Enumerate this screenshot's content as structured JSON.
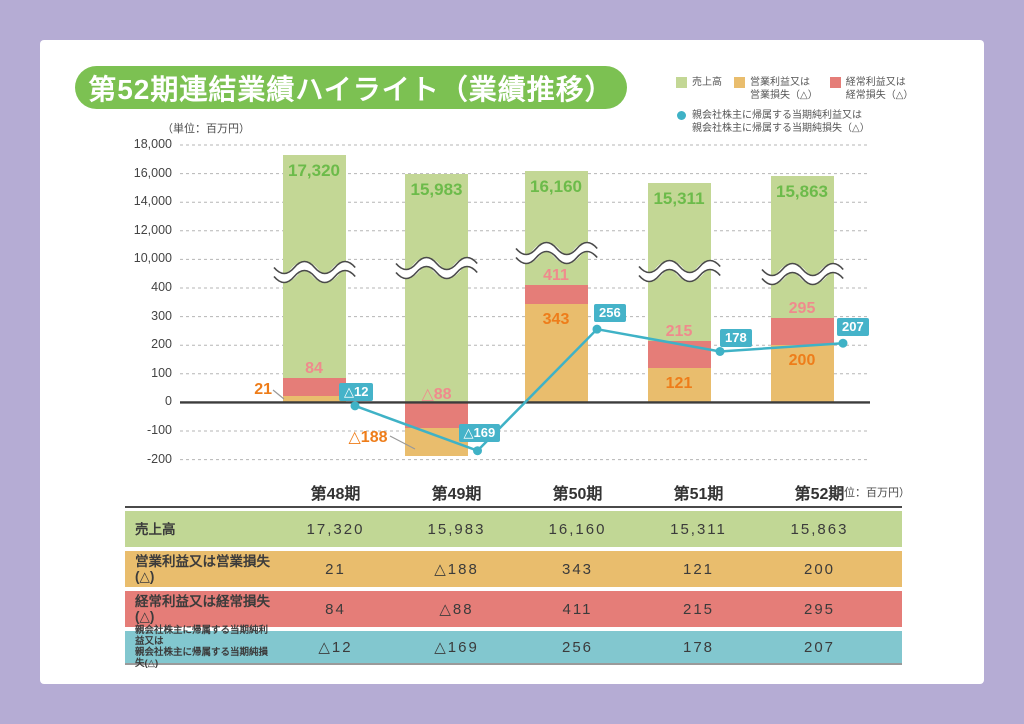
{
  "title": "第52期連結業績ハイライト（業績推移）",
  "chart_unit_label": "（単位：百万円）",
  "legend": {
    "sales": "売上高",
    "operating_1": "営業利益又は",
    "operating_2": "営業損失（△）",
    "ordinary_1": "経常利益又は",
    "ordinary_2": "経常損失（△）",
    "net_1": "親会社株主に帰属する当期純利益又は",
    "net_2": "親会社株主に帰属する当期純損失（△）"
  },
  "colors": {
    "page_bg": "#b5acd4",
    "card_bg": "#ffffff",
    "title_bg": "#7cc152",
    "bar_green": "#c3d795",
    "bar_orange": "#e9bd6d",
    "bar_red": "#e57d78",
    "line_teal": "#3fb2c6",
    "box_teal": "#45b3c9",
    "label_green": "#6cbb4a",
    "label_orange": "#ee7d1a",
    "label_pink": "#ef8b8d",
    "table_row_green": "#c1d795",
    "table_row_orange": "#e9bd6d",
    "table_row_red": "#e57d78",
    "table_row_teal": "#82c7cf",
    "grid": "#b5b5b5",
    "zero_line": "#3c3c3c"
  },
  "chart_data": {
    "type": "bar+line",
    "unit": "百万円",
    "broken_axis": true,
    "categories": [
      "第48期",
      "第49期",
      "第50期",
      "第51期",
      "第52期"
    ],
    "y_axis": {
      "upper_ticks": [
        {
          "value": 18000,
          "label": "18,000"
        },
        {
          "value": 16000,
          "label": "16,000"
        },
        {
          "value": 14000,
          "label": "14,000"
        },
        {
          "value": 12000,
          "label": "12,000"
        },
        {
          "value": 10000,
          "label": "10,000"
        }
      ],
      "lower_ticks": [
        {
          "value": 400,
          "label": "400"
        },
        {
          "value": 300,
          "label": "300"
        },
        {
          "value": 200,
          "label": "200"
        },
        {
          "value": 100,
          "label": "100"
        },
        {
          "value": 0,
          "label": "0"
        },
        {
          "value": -100,
          "label": "-100"
        },
        {
          "value": -200,
          "label": "-200"
        }
      ]
    },
    "series": [
      {
        "name": "売上高",
        "type": "bar",
        "values": [
          17320,
          15983,
          16160,
          15311,
          15863
        ],
        "labels": [
          "17,320",
          "15,983",
          "16,160",
          "15,311",
          "15,863"
        ]
      },
      {
        "name": "営業利益又は営業損失（△）",
        "type": "bar",
        "values": [
          21,
          -188,
          343,
          121,
          200
        ],
        "labels": [
          "21",
          "△188",
          "343",
          "121",
          "200"
        ]
      },
      {
        "name": "経常利益又は経常損失（△）",
        "type": "bar",
        "values": [
          84,
          -88,
          411,
          215,
          295
        ],
        "labels": [
          "84",
          "△88",
          "411",
          "215",
          "295"
        ]
      },
      {
        "name": "親会社株主に帰属する当期純利益又は親会社株主に帰属する当期純損失（△）",
        "type": "line",
        "values": [
          -12,
          -169,
          256,
          178,
          207
        ],
        "labels": [
          "△12",
          "△169",
          "256",
          "178",
          "207"
        ]
      }
    ]
  },
  "table": {
    "unit_label": "（単位：百万円）",
    "columns": [
      "第48期",
      "第49期",
      "第50期",
      "第51期",
      "第52期"
    ],
    "rows": [
      {
        "label1": "売上高",
        "label2": "",
        "values": [
          "17,320",
          "15,983",
          "16,160",
          "15,311",
          "15,863"
        ]
      },
      {
        "label1": "営業利益又は営業損失(△)",
        "label2": "",
        "values": [
          "21",
          "△188",
          "343",
          "121",
          "200"
        ]
      },
      {
        "label1": "経常利益又は経常損失(△)",
        "label2": "",
        "values": [
          "84",
          "△88",
          "411",
          "215",
          "295"
        ]
      },
      {
        "label1": "親会社株主に帰属する当期純利益又は",
        "label2": "親会社株主に帰属する当期純損失(△)",
        "values": [
          "△12",
          "△169",
          "256",
          "178",
          "207"
        ]
      }
    ]
  }
}
